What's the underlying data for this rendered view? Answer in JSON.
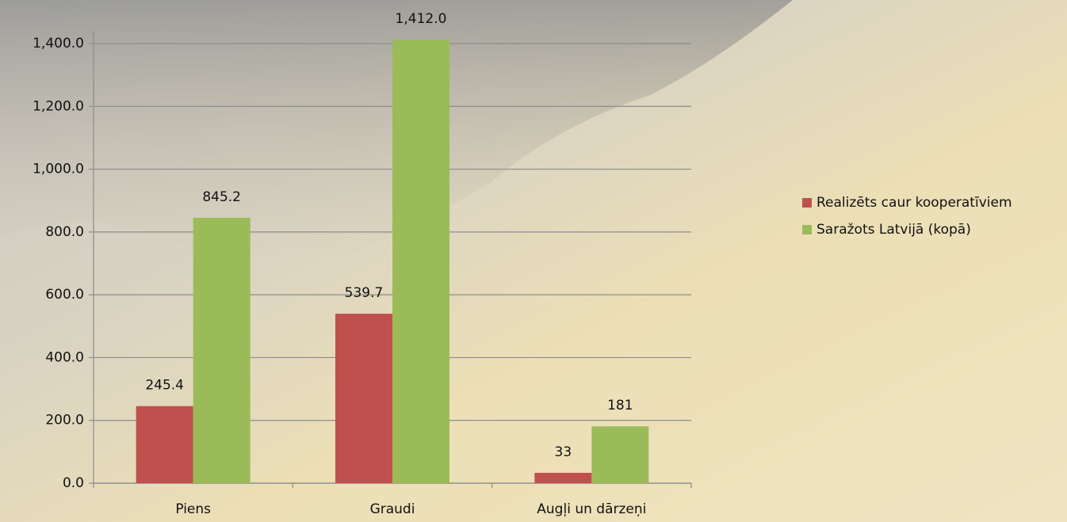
{
  "chart_data": {
    "type": "bar",
    "categories": [
      "Piens",
      "Graudi",
      "Augļi un dārzeņi"
    ],
    "series": [
      {
        "name": "Realizēts caur kooperatīviem",
        "color": "#c0504d",
        "values": [
          245.4,
          539.7,
          33
        ],
        "value_labels": [
          "245.4",
          "539.7",
          "33"
        ]
      },
      {
        "name": "Saražots Latvijā (kopā)",
        "color": "#9bbb59",
        "values": [
          845.2,
          1412.0,
          181
        ],
        "value_labels": [
          "845.2",
          "1,412.0",
          "181"
        ]
      }
    ],
    "ylim": [
      0,
      1400
    ],
    "yticks": [
      {
        "value": 0,
        "label": "0.0"
      },
      {
        "value": 200,
        "label": "200.0"
      },
      {
        "value": 400,
        "label": "400.0"
      },
      {
        "value": 600,
        "label": "600.0"
      },
      {
        "value": 800,
        "label": "800.0"
      },
      {
        "value": 1000,
        "label": "1,000.0"
      },
      {
        "value": 1200,
        "label": "1,200.0"
      },
      {
        "value": 1400,
        "label": "1,400.0"
      }
    ],
    "grid": true,
    "legend": "right"
  }
}
